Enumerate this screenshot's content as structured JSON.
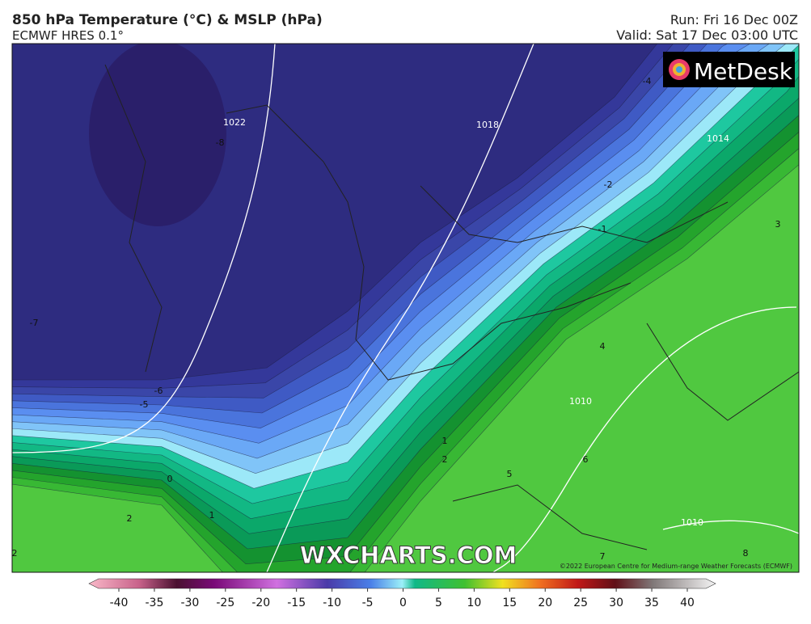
{
  "header": {
    "title": "850 hPa Temperature (°C) & MSLP (hPa)",
    "subtitle": "ECMWF HRES 0.1°",
    "run": "Run: Fri 16 Dec 00Z",
    "valid": "Valid: Sat 17 Dec 03:00 UTC"
  },
  "logo": "MetDesk",
  "watermark": "WXCHARTS.COM",
  "copyright": "©2022 European Centre for Medium-range Weather Forecasts (ECMWF)",
  "map_labels": [
    "-8",
    "1022",
    "1018",
    "-4",
    "-2",
    "-1",
    "3",
    "4",
    "1010",
    "6",
    "5",
    "2",
    "1",
    "0",
    "-5",
    "-6",
    "-7",
    "7",
    "8",
    "1010",
    "2",
    "1",
    "2",
    "1014"
  ],
  "colorbar": {
    "ticks": [
      -40,
      -35,
      -30,
      -25,
      -20,
      -15,
      -10,
      -5,
      0,
      5,
      10,
      15,
      20,
      25,
      30,
      35,
      40
    ]
  }
}
